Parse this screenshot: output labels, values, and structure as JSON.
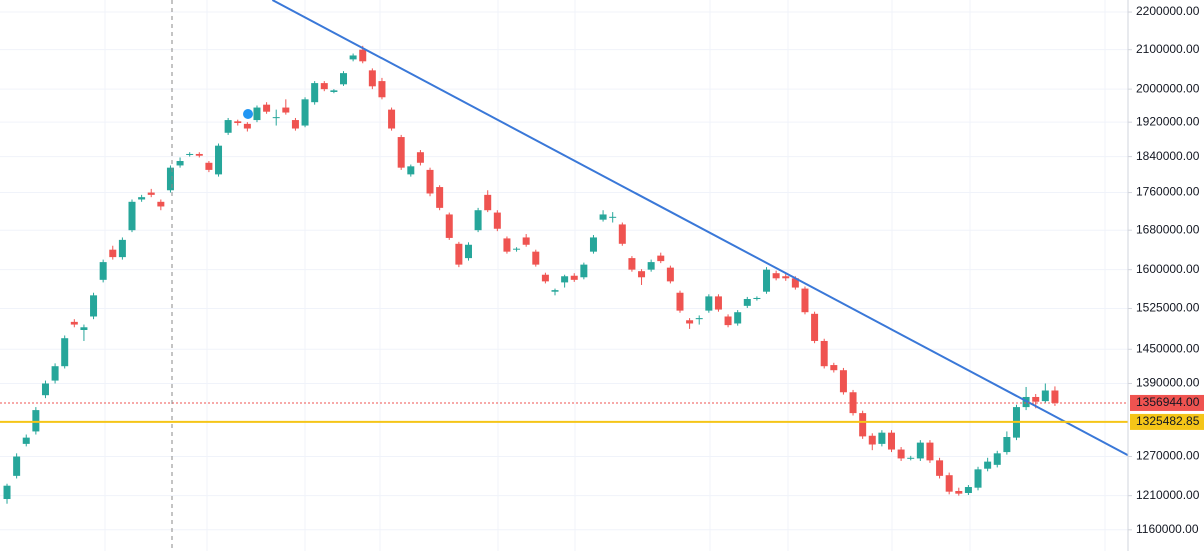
{
  "chart_data": {
    "type": "candlestick",
    "log_scale": true,
    "grid": true,
    "up_color": "#26a69a",
    "down_color": "#ef5350",
    "xlim": [
      -0.73,
      116.6
    ],
    "ylim": [
      1130000,
      2233000
    ],
    "yticks": [
      {
        "value": 1160000,
        "label": "1160000.00"
      },
      {
        "value": 1210000,
        "label": "1210000.00"
      },
      {
        "value": 1270000,
        "label": "1270000.00"
      },
      {
        "value": 1390000,
        "label": "1390000.00"
      },
      {
        "value": 1450000,
        "label": "1450000.00"
      },
      {
        "value": 1525000,
        "label": "1525000.00"
      },
      {
        "value": 1600000,
        "label": "1600000.00"
      },
      {
        "value": 1680000,
        "label": "1680000.00"
      },
      {
        "value": 1760000,
        "label": "1760000.00"
      },
      {
        "value": 1840000,
        "label": "1840000.00"
      },
      {
        "value": 1920000,
        "label": "1920000.00"
      },
      {
        "value": 2000000,
        "label": "2000000.00"
      },
      {
        "value": 2100000,
        "label": "2100000.00"
      },
      {
        "value": 2200000,
        "label": "2200000.00"
      }
    ],
    "price_lines": [
      {
        "value": 1356944,
        "label": "1356944.00",
        "color": "#ef5350"
      },
      {
        "value": 1325482.85,
        "label": "1325482.85",
        "color": "#f5c518"
      }
    ],
    "trendline": {
      "x": [
        27.6,
        116.6
      ],
      "values": [
        2233000,
        1272000
      ],
      "color": "#3a78d8"
    },
    "candles": [
      [
        1205000,
        1228000,
        1198000,
        1225000
      ],
      [
        1240000,
        1275000,
        1236000,
        1270000
      ],
      [
        1290000,
        1305000,
        1286000,
        1300000
      ],
      [
        1310000,
        1350000,
        1305000,
        1345000
      ],
      [
        1370000,
        1395000,
        1365000,
        1390000
      ],
      [
        1395000,
        1425000,
        1390000,
        1420000
      ],
      [
        1420000,
        1475000,
        1416000,
        1470000
      ],
      [
        1500000,
        1505000,
        1490000,
        1495000
      ],
      [
        1485000,
        1495000,
        1465000,
        1490000
      ],
      [
        1510000,
        1555000,
        1505000,
        1550000
      ],
      [
        1580000,
        1620000,
        1575000,
        1615000
      ],
      [
        1640000,
        1648000,
        1620000,
        1625000
      ],
      [
        1625000,
        1665000,
        1620000,
        1660000
      ],
      [
        1680000,
        1745000,
        1676000,
        1740000
      ],
      [
        1745000,
        1755000,
        1740000,
        1750000
      ],
      [
        1760000,
        1768000,
        1750000,
        1755000
      ],
      [
        1740000,
        1745000,
        1722000,
        1730000
      ],
      [
        1765000,
        1820000,
        1760000,
        1815000
      ],
      [
        1820000,
        1838000,
        1815000,
        1830000
      ],
      [
        1845000,
        1850000,
        1840000,
        1846000
      ],
      [
        1846000,
        1850000,
        1838000,
        1842000
      ],
      [
        1826000,
        1830000,
        1805000,
        1810000
      ],
      [
        1800000,
        1870000,
        1795000,
        1865000
      ],
      [
        1895000,
        1930000,
        1890000,
        1925000
      ],
      [
        1922000,
        1926000,
        1912000,
        1918000
      ],
      [
        1916000,
        1920000,
        1898000,
        1905000
      ],
      [
        1925000,
        1960000,
        1920000,
        1955000
      ],
      [
        1962000,
        1968000,
        1940000,
        1945000
      ],
      [
        1930000,
        1950000,
        1912000,
        1932000
      ],
      [
        1955000,
        1975000,
        1938000,
        1943000
      ],
      [
        1925000,
        1930000,
        1900000,
        1905000
      ],
      [
        1912000,
        1980000,
        1908000,
        1975000
      ],
      [
        1968000,
        2020000,
        1962000,
        2015000
      ],
      [
        2015000,
        2020000,
        1995000,
        2000000
      ],
      [
        1993000,
        2000000,
        1990000,
        1997000
      ],
      [
        2012000,
        2045000,
        2008000,
        2040000
      ],
      [
        2075000,
        2090000,
        2070000,
        2085000
      ],
      [
        2100000,
        2110000,
        2065000,
        2070000
      ],
      [
        2047000,
        2052000,
        2000000,
        2007000
      ],
      [
        2020000,
        2028000,
        1975000,
        1980000
      ],
      [
        1950000,
        1955000,
        1900000,
        1905000
      ],
      [
        1885000,
        1890000,
        1810000,
        1815000
      ],
      [
        1800000,
        1822000,
        1795000,
        1818000
      ],
      [
        1850000,
        1855000,
        1820000,
        1826000
      ],
      [
        1810000,
        1815000,
        1752000,
        1758000
      ],
      [
        1772000,
        1776000,
        1722000,
        1727000
      ],
      [
        1713000,
        1717000,
        1660000,
        1664000
      ],
      [
        1652000,
        1656000,
        1605000,
        1610000
      ],
      [
        1623000,
        1655000,
        1618000,
        1650000
      ],
      [
        1680000,
        1727000,
        1676000,
        1722000
      ],
      [
        1755000,
        1765000,
        1718000,
        1722000
      ],
      [
        1717000,
        1722000,
        1678000,
        1683000
      ],
      [
        1663000,
        1667000,
        1632000,
        1636000
      ],
      [
        1640000,
        1645000,
        1636000,
        1642000
      ],
      [
        1665000,
        1672000,
        1646000,
        1650000
      ],
      [
        1636000,
        1640000,
        1606000,
        1610000
      ],
      [
        1590000,
        1594000,
        1573000,
        1577000
      ],
      [
        1557000,
        1563000,
        1550000,
        1560000
      ],
      [
        1575000,
        1590000,
        1565000,
        1587000
      ],
      [
        1588000,
        1593000,
        1576000,
        1580000
      ],
      [
        1585000,
        1614000,
        1581000,
        1610000
      ],
      [
        1636000,
        1670000,
        1632000,
        1665000
      ],
      [
        1702000,
        1722000,
        1698000,
        1713000
      ],
      [
        1707000,
        1718000,
        1696000,
        1708000
      ],
      [
        1692000,
        1696000,
        1648000,
        1652000
      ],
      [
        1623000,
        1627000,
        1596000,
        1600000
      ],
      [
        1597000,
        1601000,
        1570000,
        1585000
      ],
      [
        1600000,
        1620000,
        1596000,
        1615000
      ],
      [
        1628000,
        1634000,
        1613000,
        1617000
      ],
      [
        1604000,
        1608000,
        1573000,
        1577000
      ],
      [
        1555000,
        1559000,
        1517000,
        1521000
      ],
      [
        1503000,
        1507000,
        1487000,
        1497000
      ],
      [
        1505000,
        1512000,
        1495000,
        1507000
      ],
      [
        1521000,
        1552000,
        1517000,
        1548000
      ],
      [
        1548000,
        1552000,
        1519000,
        1523000
      ],
      [
        1510000,
        1514000,
        1490000,
        1494000
      ],
      [
        1497000,
        1522000,
        1493000,
        1518000
      ],
      [
        1530000,
        1547000,
        1526000,
        1543000
      ],
      [
        1543000,
        1548000,
        1540000,
        1545000
      ],
      [
        1557000,
        1605000,
        1553000,
        1600000
      ],
      [
        1593000,
        1598000,
        1579000,
        1583000
      ],
      [
        1587000,
        1592000,
        1578000,
        1583000
      ],
      [
        1583000,
        1587000,
        1561000,
        1565000
      ],
      [
        1563000,
        1567000,
        1514000,
        1518000
      ],
      [
        1515000,
        1519000,
        1461000,
        1465000
      ],
      [
        1465000,
        1469000,
        1416000,
        1420000
      ],
      [
        1422000,
        1426000,
        1409000,
        1413000
      ],
      [
        1413000,
        1417000,
        1371000,
        1375000
      ],
      [
        1375000,
        1379000,
        1336000,
        1340000
      ],
      [
        1340000,
        1344000,
        1298000,
        1302000
      ],
      [
        1303000,
        1307000,
        1280000,
        1289000
      ],
      [
        1290000,
        1312000,
        1286000,
        1308000
      ],
      [
        1308000,
        1312000,
        1277000,
        1281000
      ],
      [
        1281000,
        1285000,
        1263000,
        1267000
      ],
      [
        1267000,
        1271000,
        1264000,
        1268000
      ],
      [
        1267000,
        1296000,
        1263000,
        1292000
      ],
      [
        1292000,
        1296000,
        1260000,
        1264000
      ],
      [
        1264000,
        1268000,
        1236000,
        1240000
      ],
      [
        1241000,
        1245000,
        1212000,
        1216000
      ],
      [
        1217000,
        1222000,
        1210000,
        1213000
      ],
      [
        1214000,
        1226000,
        1211000,
        1223000
      ],
      [
        1222000,
        1254000,
        1218000,
        1250000
      ],
      [
        1251000,
        1268000,
        1247000,
        1262000
      ],
      [
        1257000,
        1279000,
        1253000,
        1275000
      ],
      [
        1277000,
        1310000,
        1273000,
        1301000
      ],
      [
        1300000,
        1354000,
        1296000,
        1350000
      ],
      [
        1350000,
        1384000,
        1345000,
        1367000
      ],
      [
        1367000,
        1372000,
        1348000,
        1359000
      ],
      [
        1360000,
        1390000,
        1356000,
        1378000
      ],
      [
        1378000,
        1385000,
        1352000,
        1356944
      ]
    ]
  }
}
